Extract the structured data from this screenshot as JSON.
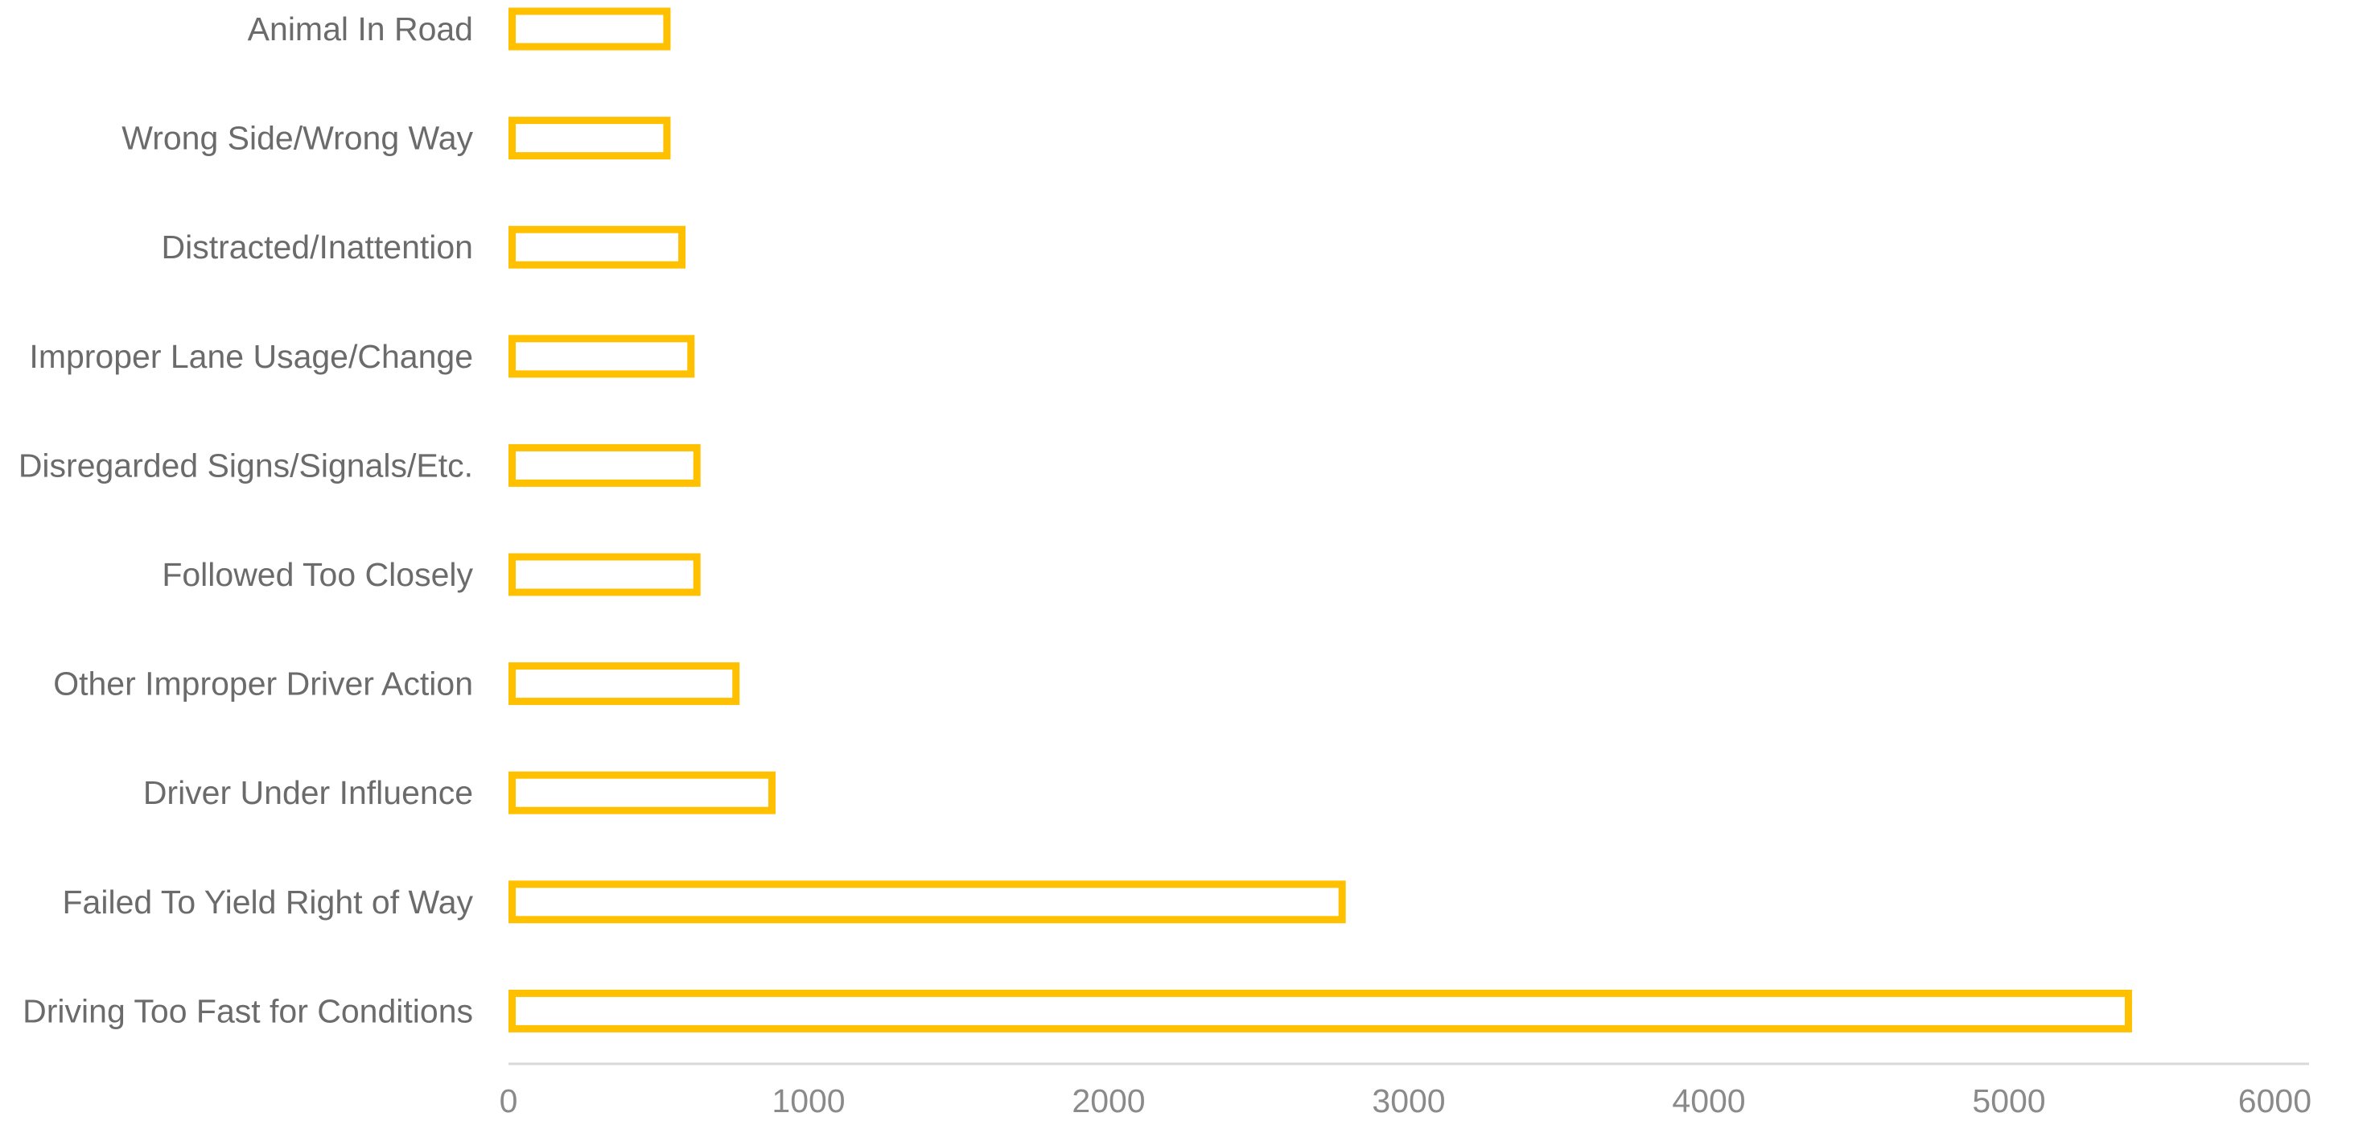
{
  "chart_data": {
    "type": "bar",
    "orientation": "horizontal",
    "categories": [
      "Animal In Road",
      "Wrong Side/Wrong Way",
      "Distracted/Inattention",
      "Improper Lane Usage/Change",
      "Disregarded Signs/Signals/Etc.",
      "Followed Too Closely",
      "Other Improper Driver Action",
      "Driver Under Influence",
      "Failed To Yield Right of Way",
      "Driving Too Fast for Conditions"
    ],
    "values": [
      540,
      540,
      590,
      620,
      640,
      640,
      770,
      890,
      2790,
      5410
    ],
    "xlim": [
      0,
      6000
    ],
    "xticks": [
      "0",
      "1000",
      "2000",
      "3000",
      "4000",
      "5000",
      "6000"
    ],
    "title": "",
    "xlabel": "",
    "ylabel": "",
    "grid": false,
    "legend": "none",
    "bar_style": "outline",
    "bar_color": "#FFC000",
    "axis_color": "#D9D9D9",
    "label_color": "#6B6B6B"
  }
}
